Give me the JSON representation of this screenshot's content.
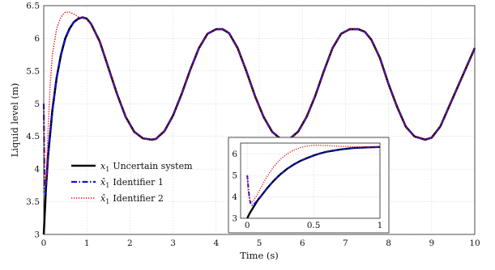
{
  "chart_data": [
    {
      "type": "line",
      "title": "",
      "xlabel": "Time (s)",
      "ylabel": "Liquid level (m)",
      "xlim": [
        0,
        10
      ],
      "ylim": [
        3,
        6.5
      ],
      "xticks": [
        "0",
        "1",
        "2",
        "3",
        "4",
        "5",
        "6",
        "7",
        "8",
        "9",
        "10"
      ],
      "yticks": [
        "3",
        "3.5",
        "4",
        "4.5",
        "5",
        "5.5",
        "6",
        "6.5"
      ],
      "grid": true,
      "legend_position": "bottom-left",
      "series": [
        {
          "name": "x_1 Uncertain system",
          "legend_symbol": "x",
          "legend_sub": "1",
          "legend_rest": "Uncertain system",
          "color": "#000000",
          "style": "solid",
          "x": [
            0,
            0.05,
            0.1,
            0.2,
            0.3,
            0.4,
            0.5,
            0.6,
            0.7,
            0.8,
            0.9,
            1.0,
            1.1,
            1.3,
            1.5,
            1.7,
            1.9,
            2.1,
            2.3,
            2.5,
            2.6,
            2.8,
            3.0,
            3.2,
            3.4,
            3.6,
            3.8,
            4.0,
            4.15,
            4.3,
            4.5,
            4.7,
            4.9,
            5.1,
            5.3,
            5.5,
            5.7,
            5.9,
            6.1,
            6.3,
            6.5,
            6.7,
            6.9,
            7.1,
            7.3,
            7.45,
            7.6,
            7.8,
            8.0,
            8.2,
            8.4,
            8.6,
            8.85,
            9.0,
            9.2,
            9.4,
            9.6,
            9.8,
            10.0
          ],
          "y": [
            3.0,
            3.7,
            4.2,
            4.9,
            5.4,
            5.75,
            6.0,
            6.15,
            6.25,
            6.3,
            6.32,
            6.3,
            6.22,
            5.95,
            5.55,
            5.15,
            4.8,
            4.57,
            4.47,
            4.45,
            4.46,
            4.58,
            4.82,
            5.15,
            5.52,
            5.85,
            6.07,
            6.14,
            6.14,
            6.08,
            5.85,
            5.5,
            5.12,
            4.8,
            4.57,
            4.46,
            4.46,
            4.57,
            4.8,
            5.12,
            5.5,
            5.85,
            6.07,
            6.14,
            6.14,
            6.1,
            5.98,
            5.7,
            5.3,
            4.95,
            4.65,
            4.5,
            4.45,
            4.48,
            4.65,
            4.95,
            5.25,
            5.55,
            5.85
          ]
        },
        {
          "name": "x̂_1 Identifier 1",
          "legend_symbol": "x̂",
          "legend_sub": "1",
          "legend_rest": "Identifier 1",
          "color": "#1010e0",
          "style": "dashdot",
          "x": [
            0,
            0.02,
            0.04,
            0.06,
            0.1,
            0.2,
            0.3,
            0.4,
            0.5,
            0.6,
            0.7,
            0.8,
            0.9,
            1.0,
            1.1,
            1.3,
            1.5,
            1.7,
            1.9,
            2.1,
            2.3,
            2.5,
            2.6,
            2.8,
            3.0,
            3.2,
            3.4,
            3.6,
            3.8,
            4.0,
            4.15,
            4.3,
            4.5,
            4.7,
            4.9,
            5.1,
            5.3,
            5.5,
            5.7,
            5.9,
            6.1,
            6.3,
            6.5,
            6.7,
            6.9,
            7.1,
            7.3,
            7.45,
            7.6,
            7.8,
            8.0,
            8.2,
            8.4,
            8.6,
            8.85,
            9.0,
            9.2,
            9.4,
            9.6,
            9.8,
            10.0
          ],
          "y": [
            5.0,
            3.7,
            3.62,
            3.75,
            4.2,
            4.9,
            5.4,
            5.75,
            6.0,
            6.15,
            6.25,
            6.3,
            6.32,
            6.3,
            6.22,
            5.95,
            5.55,
            5.15,
            4.8,
            4.57,
            4.47,
            4.45,
            4.46,
            4.58,
            4.82,
            5.15,
            5.52,
            5.85,
            6.07,
            6.14,
            6.14,
            6.08,
            5.85,
            5.5,
            5.12,
            4.8,
            4.57,
            4.46,
            4.46,
            4.57,
            4.8,
            5.12,
            5.5,
            5.85,
            6.07,
            6.14,
            6.14,
            6.1,
            5.98,
            5.7,
            5.3,
            4.95,
            4.65,
            4.5,
            4.45,
            4.48,
            4.65,
            4.95,
            5.25,
            5.55,
            5.85
          ]
        },
        {
          "name": "x̂_1 Identifier 2",
          "legend_symbol": "x̂",
          "legend_sub": "1",
          "legend_rest": "Identifier 2",
          "color": "#e01010",
          "style": "dotted",
          "x": [
            0,
            0.02,
            0.04,
            0.06,
            0.1,
            0.15,
            0.2,
            0.3,
            0.4,
            0.5,
            0.6,
            0.7,
            0.8,
            0.9,
            1.0,
            1.1,
            1.3,
            1.5,
            1.7,
            1.9,
            2.1,
            2.3,
            2.5,
            2.6,
            2.8,
            3.0,
            3.2,
            3.4,
            3.6,
            3.8,
            4.0,
            4.15,
            4.3,
            4.5,
            4.7,
            4.9,
            5.1,
            5.3,
            5.5,
            5.7,
            5.9,
            6.1,
            6.3,
            6.5,
            6.7,
            6.9,
            7.1,
            7.3,
            7.45,
            7.6,
            7.8,
            8.0,
            8.2,
            8.4,
            8.6,
            8.85,
            9.0,
            9.2,
            9.4,
            9.6,
            9.8,
            10.0
          ],
          "y": [
            5.0,
            3.8,
            3.75,
            3.9,
            4.6,
            5.3,
            5.75,
            6.15,
            6.33,
            6.4,
            6.4,
            6.37,
            6.33,
            6.31,
            6.29,
            6.22,
            5.95,
            5.55,
            5.15,
            4.8,
            4.57,
            4.47,
            4.45,
            4.46,
            4.58,
            4.82,
            5.15,
            5.52,
            5.85,
            6.07,
            6.14,
            6.14,
            6.08,
            5.85,
            5.5,
            5.12,
            4.8,
            4.57,
            4.46,
            4.46,
            4.57,
            4.8,
            5.12,
            5.5,
            5.85,
            6.07,
            6.14,
            6.14,
            6.1,
            5.98,
            5.7,
            5.3,
            4.95,
            4.65,
            4.5,
            4.45,
            4.48,
            4.65,
            4.95,
            5.25,
            5.55,
            5.85
          ]
        }
      ]
    },
    {
      "type": "line",
      "title": "",
      "xlabel": "",
      "ylabel": "",
      "xlim": [
        -0.05,
        1
      ],
      "ylim": [
        3,
        6.5
      ],
      "xticks": [
        "0",
        "0.5",
        "1"
      ],
      "yticks": [
        "3",
        "4",
        "5",
        "6"
      ],
      "grid": true,
      "series": [
        {
          "color": "#000000",
          "style": "solid",
          "x": [
            0,
            0.02,
            0.05,
            0.08,
            0.1,
            0.15,
            0.2,
            0.25,
            0.3,
            0.35,
            0.4,
            0.45,
            0.5,
            0.55,
            0.6,
            0.7,
            0.8,
            0.9,
            1.0
          ],
          "y": [
            3.0,
            3.25,
            3.55,
            3.85,
            4.0,
            4.4,
            4.75,
            5.05,
            5.3,
            5.5,
            5.67,
            5.8,
            5.92,
            6.02,
            6.1,
            6.2,
            6.27,
            6.3,
            6.32
          ]
        },
        {
          "color": "#1010e0",
          "style": "dashdot",
          "x": [
            0,
            0.01,
            0.02,
            0.03,
            0.04,
            0.05,
            0.08,
            0.1,
            0.15,
            0.2,
            0.25,
            0.3,
            0.35,
            0.4,
            0.45,
            0.5,
            0.55,
            0.6,
            0.7,
            0.8,
            0.9,
            1.0
          ],
          "y": [
            5.0,
            4.3,
            3.8,
            3.62,
            3.6,
            3.65,
            3.85,
            4.0,
            4.4,
            4.75,
            5.05,
            5.3,
            5.5,
            5.67,
            5.8,
            5.92,
            6.02,
            6.1,
            6.2,
            6.27,
            6.3,
            6.32
          ]
        },
        {
          "color": "#e01010",
          "style": "dotted",
          "x": [
            0,
            0.01,
            0.02,
            0.03,
            0.05,
            0.08,
            0.1,
            0.15,
            0.2,
            0.25,
            0.3,
            0.35,
            0.4,
            0.45,
            0.5,
            0.55,
            0.6,
            0.7,
            0.8,
            0.9,
            1.0
          ],
          "y": [
            5.0,
            4.2,
            3.75,
            3.72,
            3.85,
            4.15,
            4.4,
            4.95,
            5.4,
            5.75,
            6.0,
            6.17,
            6.29,
            6.36,
            6.4,
            6.4,
            6.38,
            6.35,
            6.33,
            6.32,
            6.31
          ]
        }
      ]
    }
  ]
}
